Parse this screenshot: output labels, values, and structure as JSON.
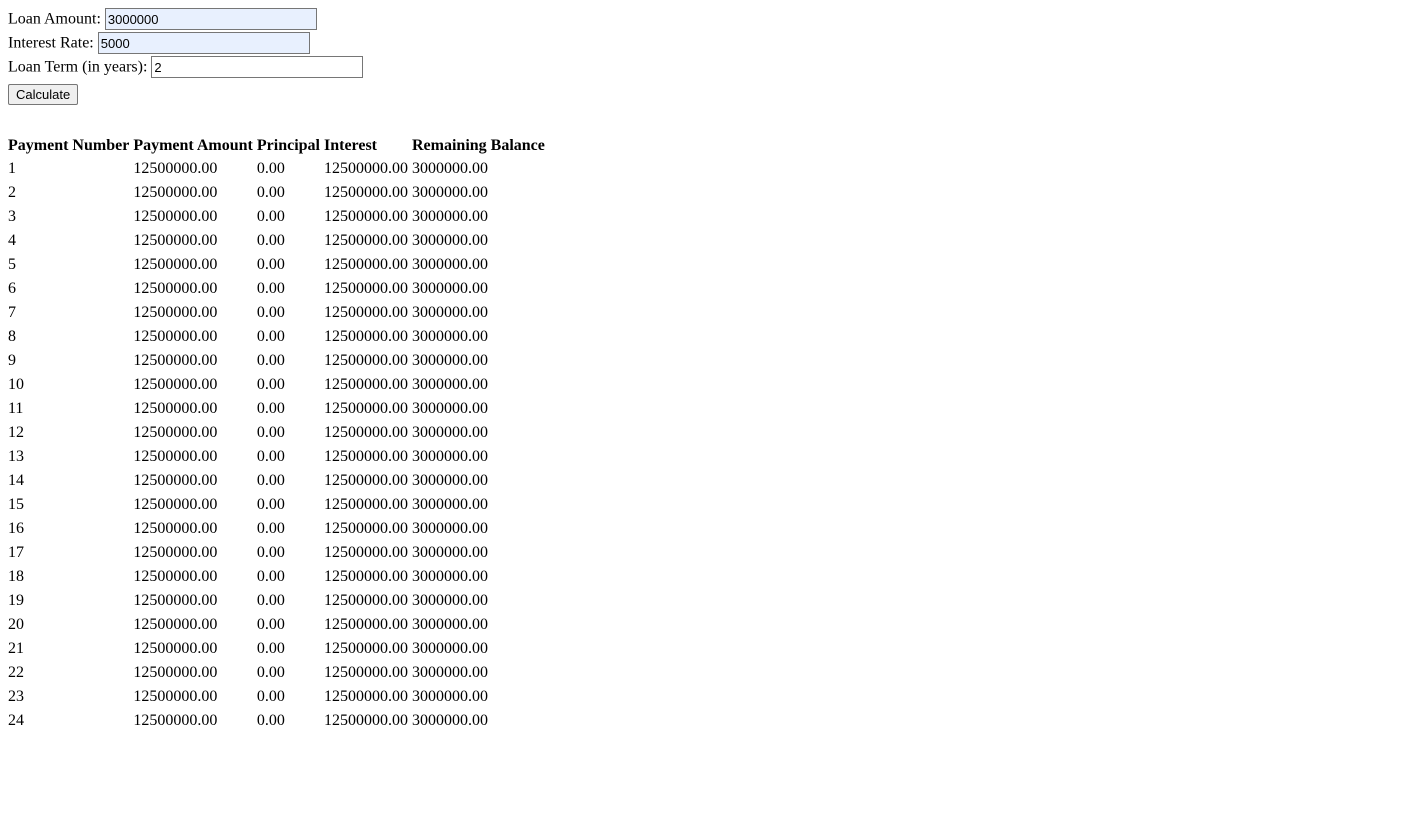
{
  "form": {
    "loan_amount_label": "Loan Amount:",
    "loan_amount_value": "3000000",
    "interest_rate_label": "Interest Rate:",
    "interest_rate_value": "5000",
    "loan_term_label": "Loan Term (in years):",
    "loan_term_value": "2",
    "calculate_label": "Calculate"
  },
  "table": {
    "columns": [
      "Payment Number",
      "Payment Amount",
      "Principal",
      "Interest",
      "Remaining Balance"
    ],
    "rows": [
      [
        "1",
        "12500000.00",
        "0.00",
        "12500000.00",
        "3000000.00"
      ],
      [
        "2",
        "12500000.00",
        "0.00",
        "12500000.00",
        "3000000.00"
      ],
      [
        "3",
        "12500000.00",
        "0.00",
        "12500000.00",
        "3000000.00"
      ],
      [
        "4",
        "12500000.00",
        "0.00",
        "12500000.00",
        "3000000.00"
      ],
      [
        "5",
        "12500000.00",
        "0.00",
        "12500000.00",
        "3000000.00"
      ],
      [
        "6",
        "12500000.00",
        "0.00",
        "12500000.00",
        "3000000.00"
      ],
      [
        "7",
        "12500000.00",
        "0.00",
        "12500000.00",
        "3000000.00"
      ],
      [
        "8",
        "12500000.00",
        "0.00",
        "12500000.00",
        "3000000.00"
      ],
      [
        "9",
        "12500000.00",
        "0.00",
        "12500000.00",
        "3000000.00"
      ],
      [
        "10",
        "12500000.00",
        "0.00",
        "12500000.00",
        "3000000.00"
      ],
      [
        "11",
        "12500000.00",
        "0.00",
        "12500000.00",
        "3000000.00"
      ],
      [
        "12",
        "12500000.00",
        "0.00",
        "12500000.00",
        "3000000.00"
      ],
      [
        "13",
        "12500000.00",
        "0.00",
        "12500000.00",
        "3000000.00"
      ],
      [
        "14",
        "12500000.00",
        "0.00",
        "12500000.00",
        "3000000.00"
      ],
      [
        "15",
        "12500000.00",
        "0.00",
        "12500000.00",
        "3000000.00"
      ],
      [
        "16",
        "12500000.00",
        "0.00",
        "12500000.00",
        "3000000.00"
      ],
      [
        "17",
        "12500000.00",
        "0.00",
        "12500000.00",
        "3000000.00"
      ],
      [
        "18",
        "12500000.00",
        "0.00",
        "12500000.00",
        "3000000.00"
      ],
      [
        "19",
        "12500000.00",
        "0.00",
        "12500000.00",
        "3000000.00"
      ],
      [
        "20",
        "12500000.00",
        "0.00",
        "12500000.00",
        "3000000.00"
      ],
      [
        "21",
        "12500000.00",
        "0.00",
        "12500000.00",
        "3000000.00"
      ],
      [
        "22",
        "12500000.00",
        "0.00",
        "12500000.00",
        "3000000.00"
      ],
      [
        "23",
        "12500000.00",
        "0.00",
        "12500000.00",
        "3000000.00"
      ],
      [
        "24",
        "12500000.00",
        "0.00",
        "12500000.00",
        "3000000.00"
      ]
    ]
  }
}
